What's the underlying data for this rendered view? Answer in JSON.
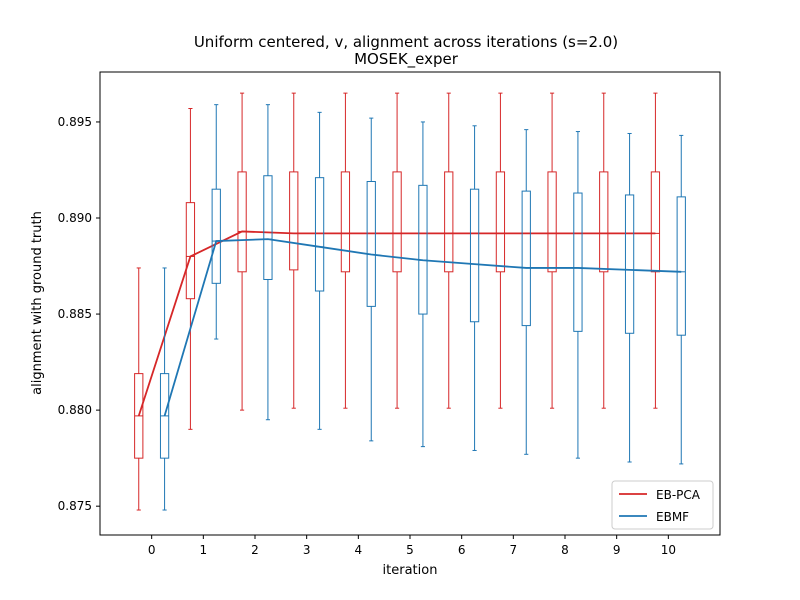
{
  "chart_data": {
    "type": "boxplot",
    "title": "Uniform centered, v, alignment across iterations (s=2.0)",
    "subtitle": "MOSEK_exper",
    "xlabel": "iteration",
    "ylabel": "alignment with ground truth",
    "xlim": [
      -1.0,
      11.0
    ],
    "ylim": [
      0.8735,
      0.8976
    ],
    "xticks": [
      0,
      1,
      2,
      3,
      4,
      5,
      6,
      7,
      8,
      9,
      10
    ],
    "yticks": [
      0.875,
      0.88,
      0.885,
      0.89,
      0.895
    ],
    "ytick_labels": [
      "0.875",
      "0.880",
      "0.885",
      "0.890",
      "0.895"
    ],
    "box_offset": 0.25,
    "box_width": 0.16,
    "legend_position": "lower-right",
    "series": [
      {
        "name": "EB-PCA",
        "color": "#d62728",
        "offset_sign": -1,
        "boxes": [
          {
            "x": 0,
            "whislo": 0.8748,
            "q1": 0.8775,
            "med": 0.8797,
            "q3": 0.8819,
            "whishi": 0.8874
          },
          {
            "x": 1,
            "whislo": 0.879,
            "q1": 0.8858,
            "med": 0.888,
            "q3": 0.8908,
            "whishi": 0.8957
          },
          {
            "x": 2,
            "whislo": 0.88,
            "q1": 0.8872,
            "med": 0.8893,
            "q3": 0.8924,
            "whishi": 0.8965
          },
          {
            "x": 3,
            "whislo": 0.8801,
            "q1": 0.8873,
            "med": 0.8892,
            "q3": 0.8924,
            "whishi": 0.8965
          },
          {
            "x": 4,
            "whislo": 0.8801,
            "q1": 0.8872,
            "med": 0.8892,
            "q3": 0.8924,
            "whishi": 0.8965
          },
          {
            "x": 5,
            "whislo": 0.8801,
            "q1": 0.8872,
            "med": 0.8892,
            "q3": 0.8924,
            "whishi": 0.8965
          },
          {
            "x": 6,
            "whislo": 0.8801,
            "q1": 0.8872,
            "med": 0.8892,
            "q3": 0.8924,
            "whishi": 0.8965
          },
          {
            "x": 7,
            "whislo": 0.8801,
            "q1": 0.8872,
            "med": 0.8892,
            "q3": 0.8924,
            "whishi": 0.8965
          },
          {
            "x": 8,
            "whislo": 0.8801,
            "q1": 0.8872,
            "med": 0.8892,
            "q3": 0.8924,
            "whishi": 0.8965
          },
          {
            "x": 9,
            "whislo": 0.8801,
            "q1": 0.8872,
            "med": 0.8892,
            "q3": 0.8924,
            "whishi": 0.8965
          },
          {
            "x": 10,
            "whislo": 0.8801,
            "q1": 0.8872,
            "med": 0.8892,
            "q3": 0.8924,
            "whishi": 0.8965
          }
        ]
      },
      {
        "name": "EBMF",
        "color": "#1f77b4",
        "offset_sign": 1,
        "boxes": [
          {
            "x": 0,
            "whislo": 0.8748,
            "q1": 0.8775,
            "med": 0.8797,
            "q3": 0.8819,
            "whishi": 0.8874
          },
          {
            "x": 1,
            "whislo": 0.8837,
            "q1": 0.8866,
            "med": 0.8888,
            "q3": 0.8915,
            "whishi": 0.8959
          },
          {
            "x": 2,
            "whislo": 0.8795,
            "q1": 0.8868,
            "med": 0.8889,
            "q3": 0.8922,
            "whishi": 0.8959
          },
          {
            "x": 3,
            "whislo": 0.879,
            "q1": 0.8862,
            "med": 0.8885,
            "q3": 0.8921,
            "whishi": 0.8955
          },
          {
            "x": 4,
            "whislo": 0.8784,
            "q1": 0.8854,
            "med": 0.8881,
            "q3": 0.8919,
            "whishi": 0.8952
          },
          {
            "x": 5,
            "whislo": 0.8781,
            "q1": 0.885,
            "med": 0.8878,
            "q3": 0.8917,
            "whishi": 0.895
          },
          {
            "x": 6,
            "whislo": 0.8779,
            "q1": 0.8846,
            "med": 0.8876,
            "q3": 0.8915,
            "whishi": 0.8948
          },
          {
            "x": 7,
            "whislo": 0.8777,
            "q1": 0.8844,
            "med": 0.8874,
            "q3": 0.8914,
            "whishi": 0.8946
          },
          {
            "x": 8,
            "whislo": 0.8775,
            "q1": 0.8841,
            "med": 0.8874,
            "q3": 0.8913,
            "whishi": 0.8945
          },
          {
            "x": 9,
            "whislo": 0.8773,
            "q1": 0.884,
            "med": 0.8873,
            "q3": 0.8912,
            "whishi": 0.8944
          },
          {
            "x": 10,
            "whislo": 0.8772,
            "q1": 0.8839,
            "med": 0.8872,
            "q3": 0.8911,
            "whishi": 0.8943
          }
        ]
      }
    ]
  }
}
